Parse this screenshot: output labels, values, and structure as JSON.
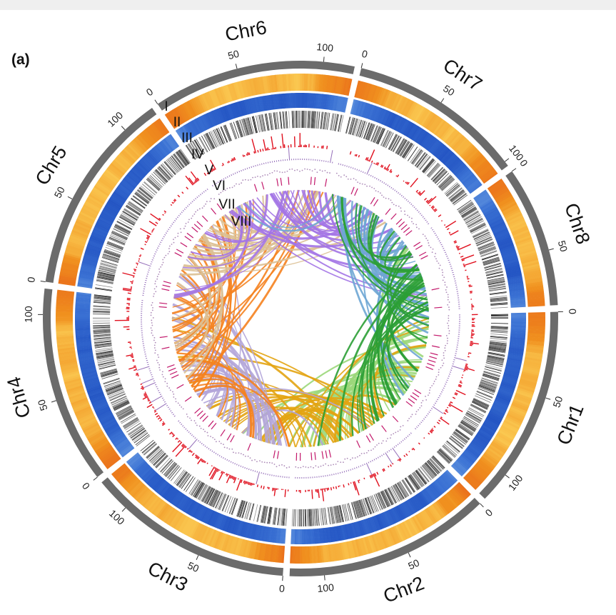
{
  "panel_label": "(a)",
  "chart_data": {
    "type": "circos",
    "direction": "clockwise",
    "chromosomes": [
      {
        "name": "Chr1",
        "length": 118,
        "ticks": [
          "0",
          "50",
          "100"
        ],
        "link_color": "#9bd77a"
      },
      {
        "name": "Chr2",
        "length": 120,
        "ticks": [
          "0",
          "50",
          "100"
        ],
        "link_color": "#e3a412"
      },
      {
        "name": "Chr3",
        "length": 120,
        "ticks": [
          "0",
          "50",
          "100"
        ],
        "link_color": "#b3a5d9"
      },
      {
        "name": "Chr4",
        "length": 115,
        "ticks": [
          "0",
          "50",
          "100"
        ],
        "link_color": "#f5821f"
      },
      {
        "name": "Chr5",
        "length": 120,
        "ticks": [
          "0",
          "50",
          "100"
        ],
        "link_color": "#dcc093"
      },
      {
        "name": "Chr6",
        "length": 118,
        "ticks": [
          "0",
          "50",
          "100"
        ],
        "link_color": "#a374e6"
      },
      {
        "name": "Chr7",
        "length": 103,
        "ticks": [
          "0",
          "50",
          "100"
        ],
        "link_color": "#6ea6d4"
      },
      {
        "name": "Chr8",
        "length": 82,
        "ticks": [
          "0",
          "50"
        ],
        "link_color": "#2b9e35"
      }
    ],
    "tracks": [
      {
        "label": "I",
        "kind": "heatmap",
        "colors": [
          "#ffe066",
          "#f0901e",
          "#e8641a"
        ]
      },
      {
        "label": "II",
        "kind": "heatmap",
        "colors": [
          "#8ab8ea",
          "#3b72d4",
          "#1f4fc0"
        ]
      },
      {
        "label": "III",
        "kind": "density-lines",
        "colors": [
          "#111111"
        ]
      },
      {
        "label": "IV",
        "kind": "histogram",
        "colors": [
          "#e0101e"
        ]
      },
      {
        "label": "V",
        "kind": "line",
        "colors": [
          "#7a4aa8"
        ]
      },
      {
        "label": "VI",
        "kind": "scatter",
        "colors": [
          "#8a5a9a"
        ]
      },
      {
        "label": "VII",
        "kind": "tiles",
        "colors": [
          "#c2186b"
        ]
      },
      {
        "label": "VIII",
        "kind": "links",
        "colors": []
      }
    ],
    "ideogram_color": "#6b6b6b"
  }
}
